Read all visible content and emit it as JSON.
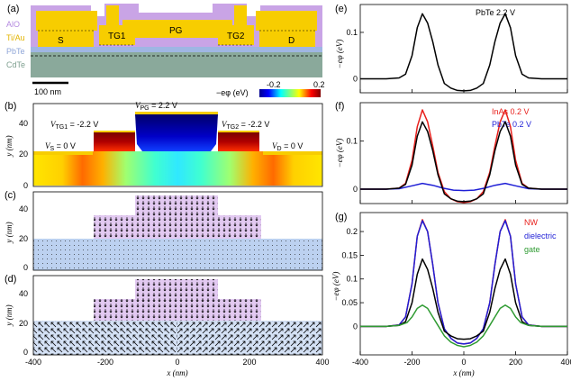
{
  "panels": {
    "a": "(a)",
    "b": "(b)",
    "c": "(c)",
    "d": "(d)",
    "e": "(e)",
    "f": "(f)",
    "g": "(g)"
  },
  "layers": {
    "alo": "AlO",
    "tiau": "Ti/Au",
    "pbte": "PbTe",
    "cdte": "CdTe",
    "s": "S",
    "tg1": "TG1",
    "pg": "PG",
    "tg2": "TG2",
    "d": "D"
  },
  "colors": {
    "alo": "#c9a4e6",
    "tiau": "#f7cd00",
    "pbte_layer": "#9fb6e3",
    "cdte": "#8aa99b",
    "alo_label": "#b58ae0",
    "tiau_label": "#e3b400",
    "pbte_label": "#8fa6d8",
    "cdte_label": "#7fa090",
    "nw": "#e8201c",
    "dielectric": "#1f1fd6",
    "gate": "#2f9b32",
    "pbte22": "#000000"
  },
  "scalebar": "100 nm",
  "colorbar": {
    "label": "−eφ (eV)",
    "min": "-0.2",
    "max": "0.2"
  },
  "voltages": {
    "vpg": "V",
    "vpg_sub": "PG",
    "vpg_val": " = 2.2 V",
    "vtg1": "V",
    "vtg1_sub": "TG1",
    "vtg1_val": " = -2.2 V",
    "vtg2": "V",
    "vtg2_sub": "TG2",
    "vtg2_val": " = -2.2 V",
    "vs": "V",
    "vs_sub": "S",
    "vs_val": " = 0 V",
    "vd": "V",
    "vd_sub": "D",
    "vd_val": " = 0 V"
  },
  "left_axis": {
    "ylabel": "y (nm)",
    "yticks": [
      "0",
      "20",
      "40"
    ],
    "xlabel": "x (nm)",
    "xticks": [
      "-400",
      "-200",
      "0",
      "200",
      "400"
    ]
  },
  "right_axis": {
    "ylabel": "−eφ (eV)",
    "xlabel": "x (nm)",
    "xticks": [
      "-400",
      "-200",
      "0",
      "200",
      "400"
    ]
  },
  "chart_data": [
    {
      "panel": "e",
      "type": "line",
      "title": "",
      "xlabel": "x (nm)",
      "ylabel": "−eφ (eV)",
      "xlim": [
        -400,
        400
      ],
      "ylim": [
        -0.03,
        0.16
      ],
      "yticks": [
        0,
        0.1
      ],
      "series": [
        {
          "name": "PbTe 2.2 V",
          "color": "#000000",
          "x": [
            -400,
            -350,
            -300,
            -250,
            -225,
            -200,
            -180,
            -160,
            -140,
            -120,
            -100,
            -75,
            -50,
            -25,
            0,
            25,
            50,
            75,
            100,
            120,
            140,
            160,
            180,
            200,
            225,
            250,
            300,
            350,
            400
          ],
          "y": [
            0,
            0,
            0,
            0.002,
            0.01,
            0.05,
            0.11,
            0.14,
            0.12,
            0.08,
            0.03,
            -0.01,
            -0.02,
            -0.025,
            -0.026,
            -0.025,
            -0.02,
            -0.01,
            0.03,
            0.08,
            0.12,
            0.14,
            0.11,
            0.05,
            0.01,
            0.002,
            0,
            0,
            0
          ]
        }
      ]
    },
    {
      "panel": "f",
      "type": "line",
      "xlabel": "x (nm)",
      "ylabel": "−eφ (eV)",
      "xlim": [
        -400,
        400
      ],
      "ylim": [
        -0.03,
        0.18
      ],
      "yticks": [
        0,
        0.1
      ],
      "series": [
        {
          "name": "InAs 0.2 V",
          "color": "#e8201c",
          "x": [
            -400,
            -300,
            -250,
            -225,
            -200,
            -180,
            -160,
            -140,
            -120,
            -100,
            -75,
            -50,
            -25,
            0,
            25,
            50,
            75,
            100,
            120,
            140,
            160,
            180,
            200,
            225,
            250,
            300,
            400
          ],
          "y": [
            0,
            0,
            0.002,
            0.012,
            0.06,
            0.13,
            0.165,
            0.14,
            0.09,
            0.035,
            -0.005,
            -0.02,
            -0.026,
            -0.028,
            -0.026,
            -0.02,
            -0.005,
            0.035,
            0.09,
            0.14,
            0.165,
            0.13,
            0.06,
            0.012,
            0.002,
            0,
            0
          ]
        },
        {
          "name": "PbTe 0.2 V",
          "color": "#1f1fd6",
          "x": [
            -400,
            -300,
            -250,
            -200,
            -160,
            -120,
            -80,
            -40,
            0,
            40,
            80,
            120,
            160,
            200,
            250,
            300,
            400
          ],
          "y": [
            0,
            0,
            0.001,
            0.007,
            0.012,
            0.008,
            0.002,
            -0.002,
            -0.003,
            -0.002,
            0.002,
            0.008,
            0.012,
            0.007,
            0.001,
            0,
            0
          ]
        },
        {
          "name": "",
          "color": "#000000",
          "x": [
            -400,
            -300,
            -250,
            -225,
            -200,
            -180,
            -160,
            -140,
            -120,
            -100,
            -75,
            -50,
            -25,
            0,
            25,
            50,
            75,
            100,
            120,
            140,
            160,
            180,
            200,
            225,
            250,
            300,
            400
          ],
          "y": [
            0,
            0,
            0.002,
            0.01,
            0.05,
            0.11,
            0.14,
            0.12,
            0.08,
            0.03,
            -0.01,
            -0.02,
            -0.025,
            -0.026,
            -0.025,
            -0.02,
            -0.01,
            0.03,
            0.08,
            0.12,
            0.14,
            0.11,
            0.05,
            0.01,
            0.002,
            0,
            0
          ]
        }
      ]
    },
    {
      "panel": "g",
      "type": "line",
      "xlabel": "x (nm)",
      "ylabel": "−eφ (eV)",
      "xlim": [
        -400,
        400
      ],
      "ylim": [
        -0.06,
        0.24
      ],
      "yticks": [
        0,
        0.05,
        0.1,
        0.15,
        0.2
      ],
      "series": [
        {
          "name": "NW",
          "color": "#e8201c",
          "x": [
            -400,
            -300,
            -250,
            -225,
            -200,
            -180,
            -160,
            -140,
            -120,
            -100,
            -75,
            -50,
            -25,
            0,
            25,
            50,
            75,
            100,
            120,
            140,
            160,
            180,
            200,
            225,
            250,
            300,
            400
          ],
          "y": [
            0,
            0,
            0.003,
            0.02,
            0.09,
            0.19,
            0.225,
            0.2,
            0.13,
            0.05,
            -0.005,
            -0.025,
            -0.035,
            -0.037,
            -0.035,
            -0.025,
            -0.005,
            0.05,
            0.13,
            0.2,
            0.225,
            0.19,
            0.09,
            0.02,
            0.003,
            0,
            0
          ]
        },
        {
          "name": "dielectric",
          "color": "#1f1fd6",
          "x": [
            -400,
            -300,
            -250,
            -225,
            -200,
            -180,
            -160,
            -140,
            -120,
            -100,
            -75,
            -50,
            -25,
            0,
            25,
            50,
            75,
            100,
            120,
            140,
            160,
            180,
            200,
            225,
            250,
            300,
            400
          ],
          "y": [
            0,
            0,
            0.003,
            0.02,
            0.09,
            0.19,
            0.223,
            0.2,
            0.13,
            0.05,
            -0.005,
            -0.025,
            -0.035,
            -0.037,
            -0.035,
            -0.025,
            -0.005,
            0.05,
            0.13,
            0.2,
            0.223,
            0.19,
            0.09,
            0.02,
            0.003,
            0,
            0
          ]
        },
        {
          "name": "",
          "color": "#000000",
          "x": [
            -400,
            -300,
            -250,
            -225,
            -200,
            -180,
            -160,
            -140,
            -120,
            -100,
            -75,
            -50,
            -25,
            0,
            25,
            50,
            75,
            100,
            120,
            140,
            160,
            180,
            200,
            225,
            250,
            300,
            400
          ],
          "y": [
            0,
            0,
            0.002,
            0.01,
            0.05,
            0.11,
            0.142,
            0.12,
            0.08,
            0.03,
            -0.01,
            -0.02,
            -0.026,
            -0.027,
            -0.026,
            -0.02,
            -0.01,
            0.03,
            0.08,
            0.12,
            0.142,
            0.11,
            0.05,
            0.01,
            0.002,
            0,
            0
          ]
        },
        {
          "name": "gate",
          "color": "#2f9b32",
          "x": [
            -400,
            -300,
            -250,
            -220,
            -200,
            -180,
            -160,
            -140,
            -120,
            -100,
            -75,
            -50,
            -25,
            0,
            25,
            50,
            75,
            100,
            120,
            140,
            160,
            180,
            200,
            220,
            250,
            300,
            400
          ],
          "y": [
            0,
            0,
            0.002,
            0.008,
            0.02,
            0.038,
            0.045,
            0.038,
            0.02,
            0.002,
            -0.02,
            -0.033,
            -0.04,
            -0.043,
            -0.04,
            -0.033,
            -0.02,
            0.002,
            0.02,
            0.038,
            0.045,
            0.038,
            0.02,
            0.008,
            0.002,
            0,
            0
          ]
        }
      ]
    }
  ]
}
